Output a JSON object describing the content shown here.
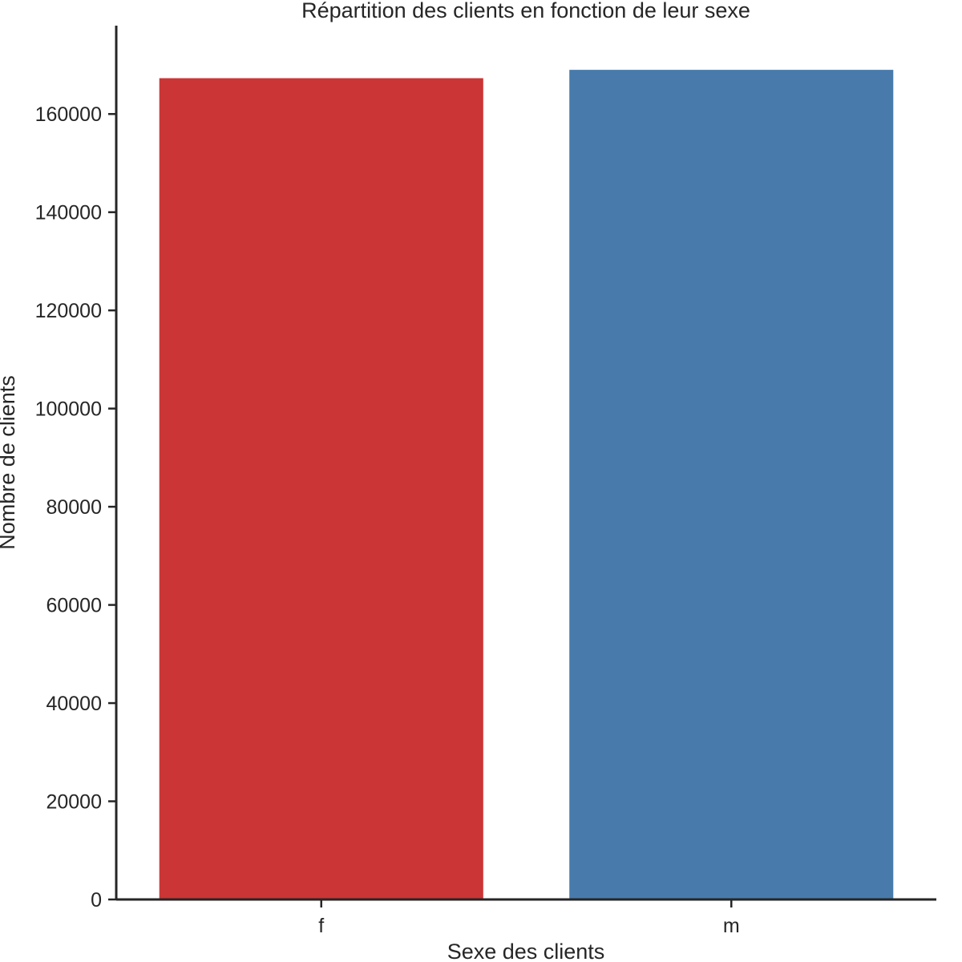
{
  "chart_data": {
    "type": "bar",
    "title": "Répartition des clients en fonction de leur sexe",
    "xlabel": "Sexe des clients",
    "ylabel": "Nombre de clients",
    "categories": [
      "f",
      "m"
    ],
    "values": [
      167300,
      169000
    ],
    "colors": [
      "#cc3535",
      "#487bab"
    ],
    "ylim": [
      0,
      178000
    ],
    "yticks": [
      0,
      20000,
      40000,
      60000,
      80000,
      100000,
      120000,
      140000,
      160000
    ],
    "grid": false,
    "legend": "none"
  }
}
